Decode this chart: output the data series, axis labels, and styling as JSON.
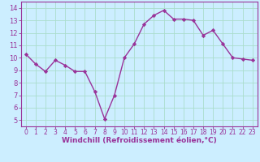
{
  "x": [
    0,
    1,
    2,
    3,
    4,
    5,
    6,
    7,
    8,
    9,
    10,
    11,
    12,
    13,
    14,
    15,
    16,
    17,
    18,
    19,
    20,
    21,
    22,
    23
  ],
  "y": [
    10.3,
    9.5,
    8.9,
    9.8,
    9.4,
    8.9,
    8.9,
    7.3,
    5.1,
    7.0,
    10.0,
    11.1,
    12.7,
    13.4,
    13.8,
    13.1,
    13.1,
    13.0,
    11.8,
    12.2,
    11.1,
    10.0,
    9.9,
    9.8
  ],
  "line_color": "#993399",
  "marker": "D",
  "marker_size": 2.2,
  "background_color": "#cceeff",
  "grid_color": "#aaddcc",
  "xlabel": "Windchill (Refroidissement éolien,°C)",
  "xlabel_color": "#993399",
  "tick_color": "#993399",
  "ylim": [
    4.5,
    14.5
  ],
  "yticks": [
    5,
    6,
    7,
    8,
    9,
    10,
    11,
    12,
    13,
    14
  ],
  "xticks": [
    0,
    1,
    2,
    3,
    4,
    5,
    6,
    7,
    8,
    9,
    10,
    11,
    12,
    13,
    14,
    15,
    16,
    17,
    18,
    19,
    20,
    21,
    22,
    23
  ],
  "spine_color": "#993399",
  "line_width": 1.0,
  "xlabel_fontsize": 6.5,
  "tick_fontsize_x": 5.5,
  "tick_fontsize_y": 6.0
}
